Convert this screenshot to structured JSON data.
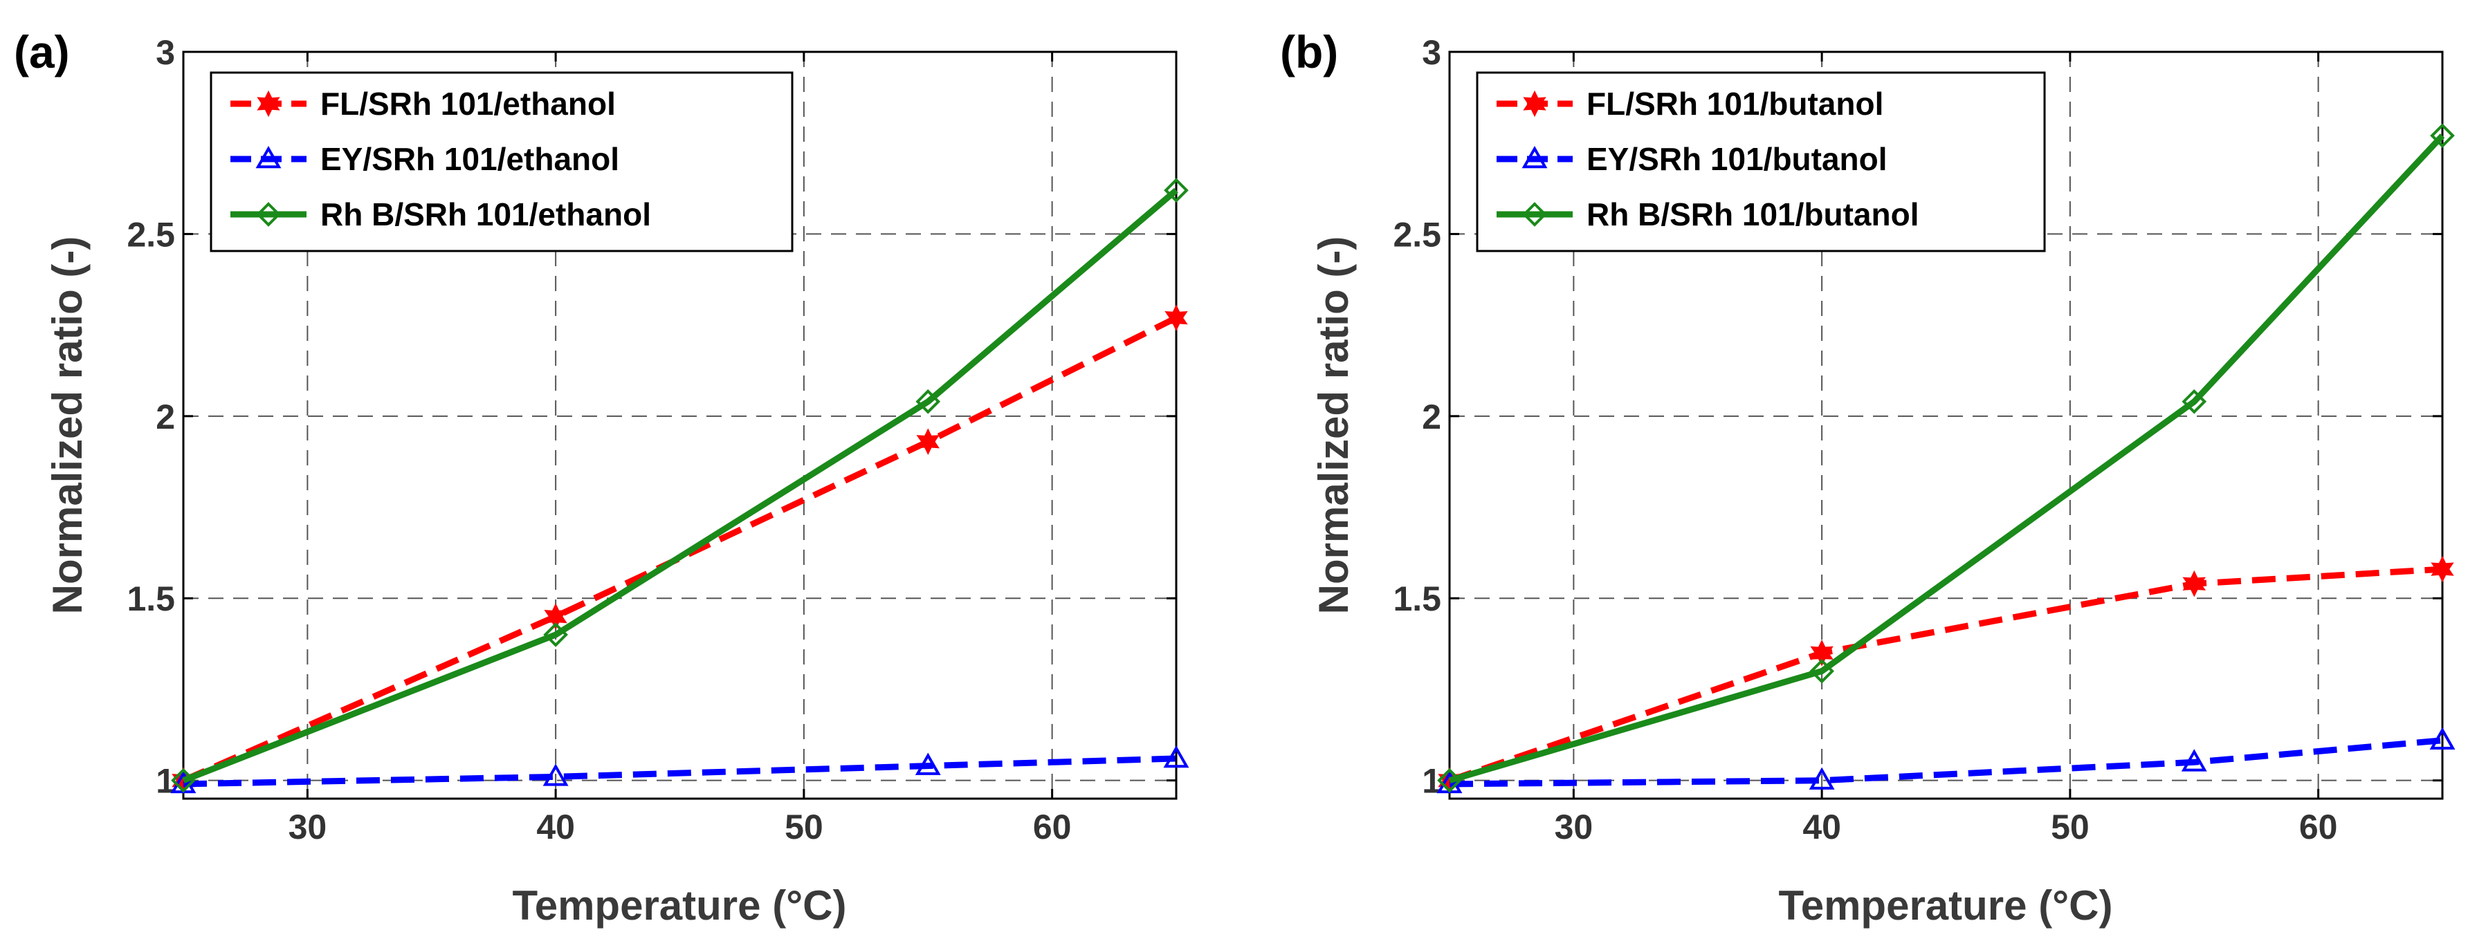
{
  "chart_data": [
    {
      "type": "line",
      "panel_label": "(a)",
      "xlabel": "Temperature (°C)",
      "ylabel": "Normalized ratio (-)",
      "xlim": [
        25,
        65
      ],
      "ylim": [
        0.95,
        3
      ],
      "xticks": [
        30,
        40,
        50,
        60
      ],
      "xtick_labels": [
        "30",
        "40",
        "50",
        "60"
      ],
      "yticks": [
        1,
        1.5,
        2,
        2.5,
        3
      ],
      "ytick_labels": [
        "1",
        "1.5",
        "2",
        "2.5",
        "3"
      ],
      "grid": true,
      "legend_position": "top-left",
      "x": [
        25,
        40,
        55,
        65
      ],
      "series": [
        {
          "name": "FL/SRh 101/ethanol",
          "values": [
            1.0,
            1.45,
            1.93,
            2.27
          ],
          "color": "#ff0000",
          "line_style": "dashed",
          "marker": "hexagram"
        },
        {
          "name": "EY/SRh 101/ethanol",
          "values": [
            0.99,
            1.01,
            1.04,
            1.06
          ],
          "color": "#0000ff",
          "line_style": "dashed",
          "marker": "triangle"
        },
        {
          "name": "Rh B/SRh 101/ethanol",
          "values": [
            1.0,
            1.4,
            2.04,
            2.62
          ],
          "color": "#1a8a1a",
          "line_style": "solid",
          "marker": "diamond"
        }
      ]
    },
    {
      "type": "line",
      "panel_label": "(b)",
      "xlabel": "Temperature (°C)",
      "ylabel": "Normalized ratio (-)",
      "xlim": [
        25,
        65
      ],
      "ylim": [
        0.95,
        3
      ],
      "xticks": [
        30,
        40,
        50,
        60
      ],
      "xtick_labels": [
        "30",
        "40",
        "50",
        "60"
      ],
      "yticks": [
        1,
        1.5,
        2,
        2.5,
        3
      ],
      "ytick_labels": [
        "1",
        "1.5",
        "2",
        "2.5",
        "3"
      ],
      "grid": true,
      "legend_position": "top-left",
      "x": [
        25,
        40,
        55,
        65
      ],
      "series": [
        {
          "name": "FL/SRh 101/butanol",
          "values": [
            1.0,
            1.35,
            1.54,
            1.58
          ],
          "color": "#ff0000",
          "line_style": "dashed",
          "marker": "hexagram"
        },
        {
          "name": "EY/SRh 101/butanol",
          "values": [
            0.99,
            1.0,
            1.05,
            1.11
          ],
          "color": "#0000ff",
          "line_style": "dashed",
          "marker": "triangle"
        },
        {
          "name": "Rh B/SRh 101/butanol",
          "values": [
            1.0,
            1.3,
            2.04,
            2.77
          ],
          "color": "#1a8a1a",
          "line_style": "solid",
          "marker": "diamond"
        }
      ]
    }
  ]
}
